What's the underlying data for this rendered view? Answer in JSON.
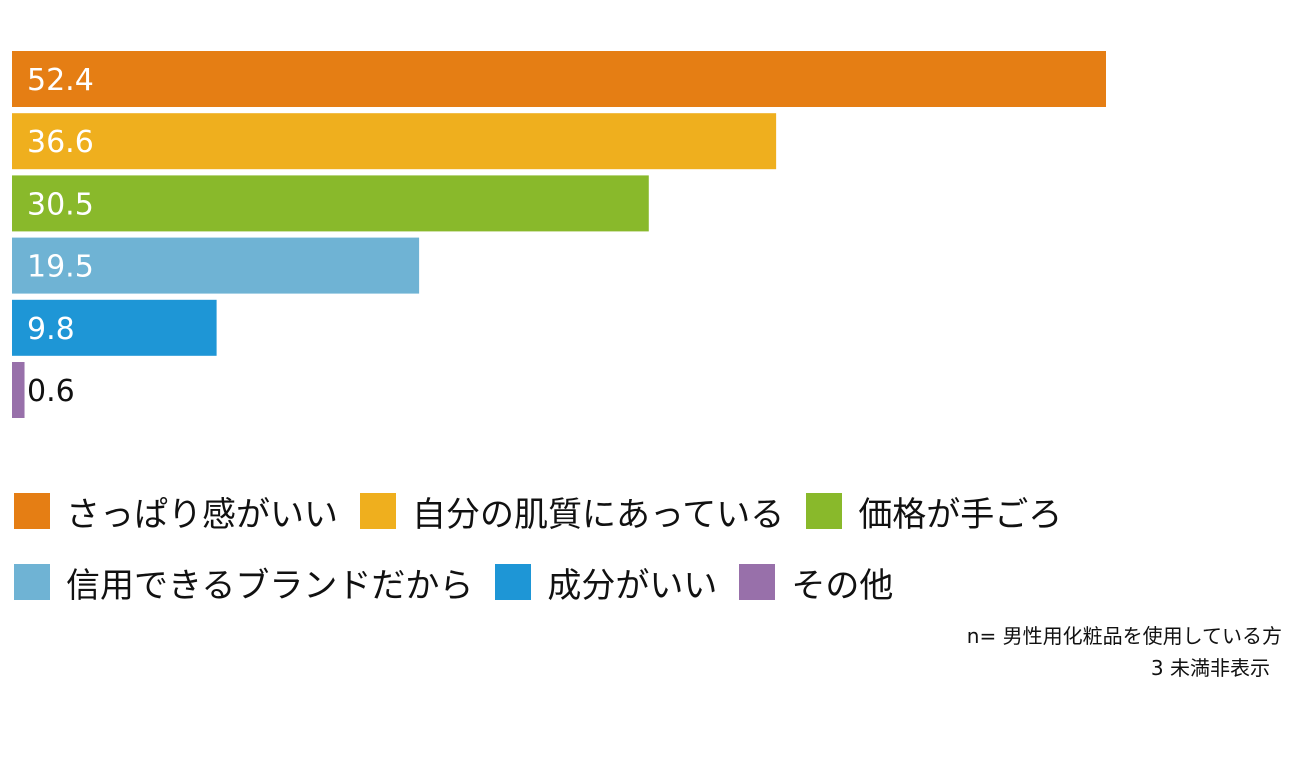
{
  "chart_data": {
    "type": "bar",
    "orientation": "horizontal",
    "categories": [
      "さっぱり感がいい",
      "自分の肌質にあっている",
      "価格が手ごろ",
      "信用できるブランドだから",
      "成分がいい",
      "その他"
    ],
    "values": [
      52.4,
      36.6,
      30.5,
      19.5,
      9.8,
      0.6
    ],
    "colors": [
      "#E57E14",
      "#EFAF1E",
      "#89B92B",
      "#6FB3D4",
      "#1E96D6",
      "#9870AA"
    ],
    "xlim": [
      0,
      52.4
    ],
    "grid": false,
    "legend_position": "bottom"
  },
  "legend": {
    "items": [
      {
        "label": "さっぱり感がいい",
        "color": "#E57E14"
      },
      {
        "label": "自分の肌質にあっている",
        "color": "#EFAF1E"
      },
      {
        "label": "価格が手ごろ",
        "color": "#89B92B"
      },
      {
        "label": "信用できるブランドだから",
        "color": "#6FB3D4"
      },
      {
        "label": "成分がいい",
        "color": "#1E96D6"
      },
      {
        "label": "その他",
        "color": "#9870AA"
      }
    ]
  },
  "notes": {
    "sample": "n= 男性用化粧品を使用している方",
    "threshold": "3 未満非表示"
  }
}
